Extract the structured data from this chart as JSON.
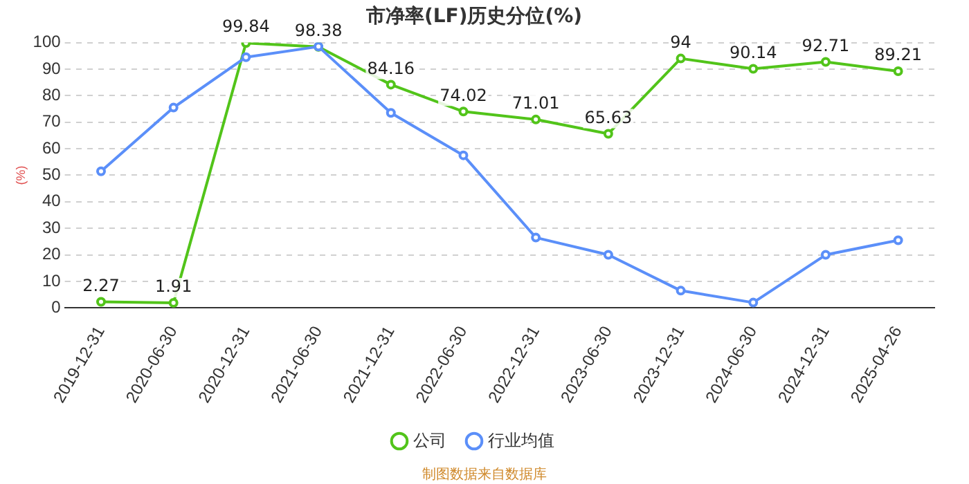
{
  "chart_data": {
    "type": "line",
    "title": "市净率(LF)历史分位(%)",
    "ylabel": "(%)",
    "categories": [
      "2019-12-31",
      "2020-06-30",
      "2020-12-31",
      "2021-06-30",
      "2021-12-31",
      "2022-06-30",
      "2022-12-31",
      "2023-06-30",
      "2023-12-31",
      "2024-06-30",
      "2024-12-31",
      "2025-04-26"
    ],
    "series": [
      {
        "name": "公司",
        "color": "#52c41a",
        "values": [
          2.27,
          1.91,
          99.84,
          98.38,
          84.16,
          74.02,
          71.01,
          65.63,
          94,
          90.14,
          92.71,
          89.21
        ],
        "value_labels": [
          "2.27",
          "1.91",
          "99.84",
          "98.38",
          "84.16",
          "74.02",
          "71.01",
          "65.63",
          "94",
          "90.14",
          "92.71",
          "89.21"
        ]
      },
      {
        "name": "行业均值",
        "color": "#5b8ff9",
        "values": [
          51.5,
          75.5,
          94.5,
          98.5,
          73.5,
          57.5,
          26.5,
          20,
          6.5,
          2,
          20,
          25.5
        ]
      }
    ],
    "ylim": [
      0,
      100
    ],
    "yticks": [
      0,
      10,
      20,
      30,
      40,
      50,
      60,
      70,
      80,
      90,
      100
    ],
    "grid": "y",
    "legend": "bottom",
    "marker": "circle",
    "line_style": "solid",
    "annotations": [
      "制图数据来自数据库"
    ]
  }
}
